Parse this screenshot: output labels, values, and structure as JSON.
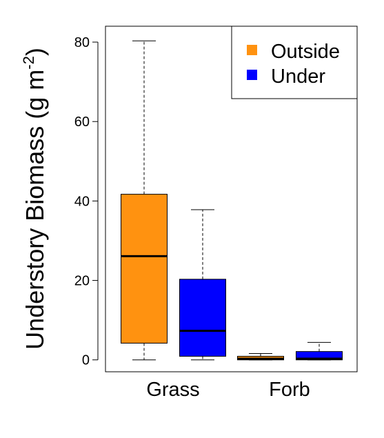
{
  "chart_data": {
    "type": "boxplot",
    "ylabel": "Understory Biomass (g m",
    "ylabel_unit_superscript": "-2",
    "ylabel_suffix": ")",
    "ylim": [
      -3,
      84
    ],
    "yticks": [
      0,
      20,
      40,
      60,
      80
    ],
    "categories": [
      "Grass",
      "Forb"
    ],
    "legend_position": "top-right",
    "series": [
      {
        "name": "Outside",
        "color": "#FF9210",
        "boxes": [
          {
            "category": "Grass",
            "min": 0,
            "q1": 4.2,
            "median": 26.1,
            "q3": 41.7,
            "max": 80.3
          },
          {
            "category": "Forb",
            "min": 0,
            "q1": 0,
            "median": 0.3,
            "q3": 0.9,
            "max": 1.6
          }
        ]
      },
      {
        "name": "Under",
        "color": "#0000FF",
        "boxes": [
          {
            "category": "Grass",
            "min": 0,
            "q1": 0.9,
            "median": 7.3,
            "q3": 20.3,
            "max": 37.8
          },
          {
            "category": "Forb",
            "min": 0,
            "q1": 0,
            "median": 0.3,
            "q3": 2.1,
            "max": 4.4
          }
        ]
      }
    ]
  }
}
